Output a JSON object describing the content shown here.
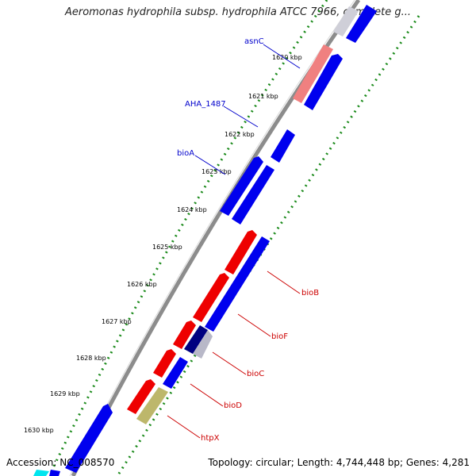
{
  "title": "Aeromonas hydrophila subsp. hydrophila ATCC 7966, complete g...",
  "footer": {
    "accession": "Accession: NC_008570",
    "topology": "Topology: circular; Length: 4,744,448 bp; Genes: 4,281"
  },
  "colors": {
    "backbone": "#8c8c8c",
    "tick_dots": "#1a8a1a",
    "forward_gene": "#0000ee",
    "reverse_gene": "#ee0000",
    "label_forward": "#0000cc",
    "label_reverse": "#cc0000"
  },
  "kbp_ticks": [
    "1620 kbp",
    "1621 kbp",
    "1622 kbp",
    "1623 kbp",
    "1624 kbp",
    "1625 kbp",
    "1626 kbp",
    "1627 kbp",
    "1628 kbp",
    "1629 kbp",
    "1630 kbp"
  ],
  "gene_labels": [
    {
      "name": "asnC",
      "strand": "forward"
    },
    {
      "name": "AHA_1487",
      "strand": "forward"
    },
    {
      "name": "bioA",
      "strand": "forward"
    },
    {
      "name": "bioB",
      "strand": "reverse"
    },
    {
      "name": "bioF",
      "strand": "reverse"
    },
    {
      "name": "bioC",
      "strand": "reverse"
    },
    {
      "name": "bioD",
      "strand": "reverse"
    },
    {
      "name": "htpX",
      "strand": "reverse"
    }
  ]
}
